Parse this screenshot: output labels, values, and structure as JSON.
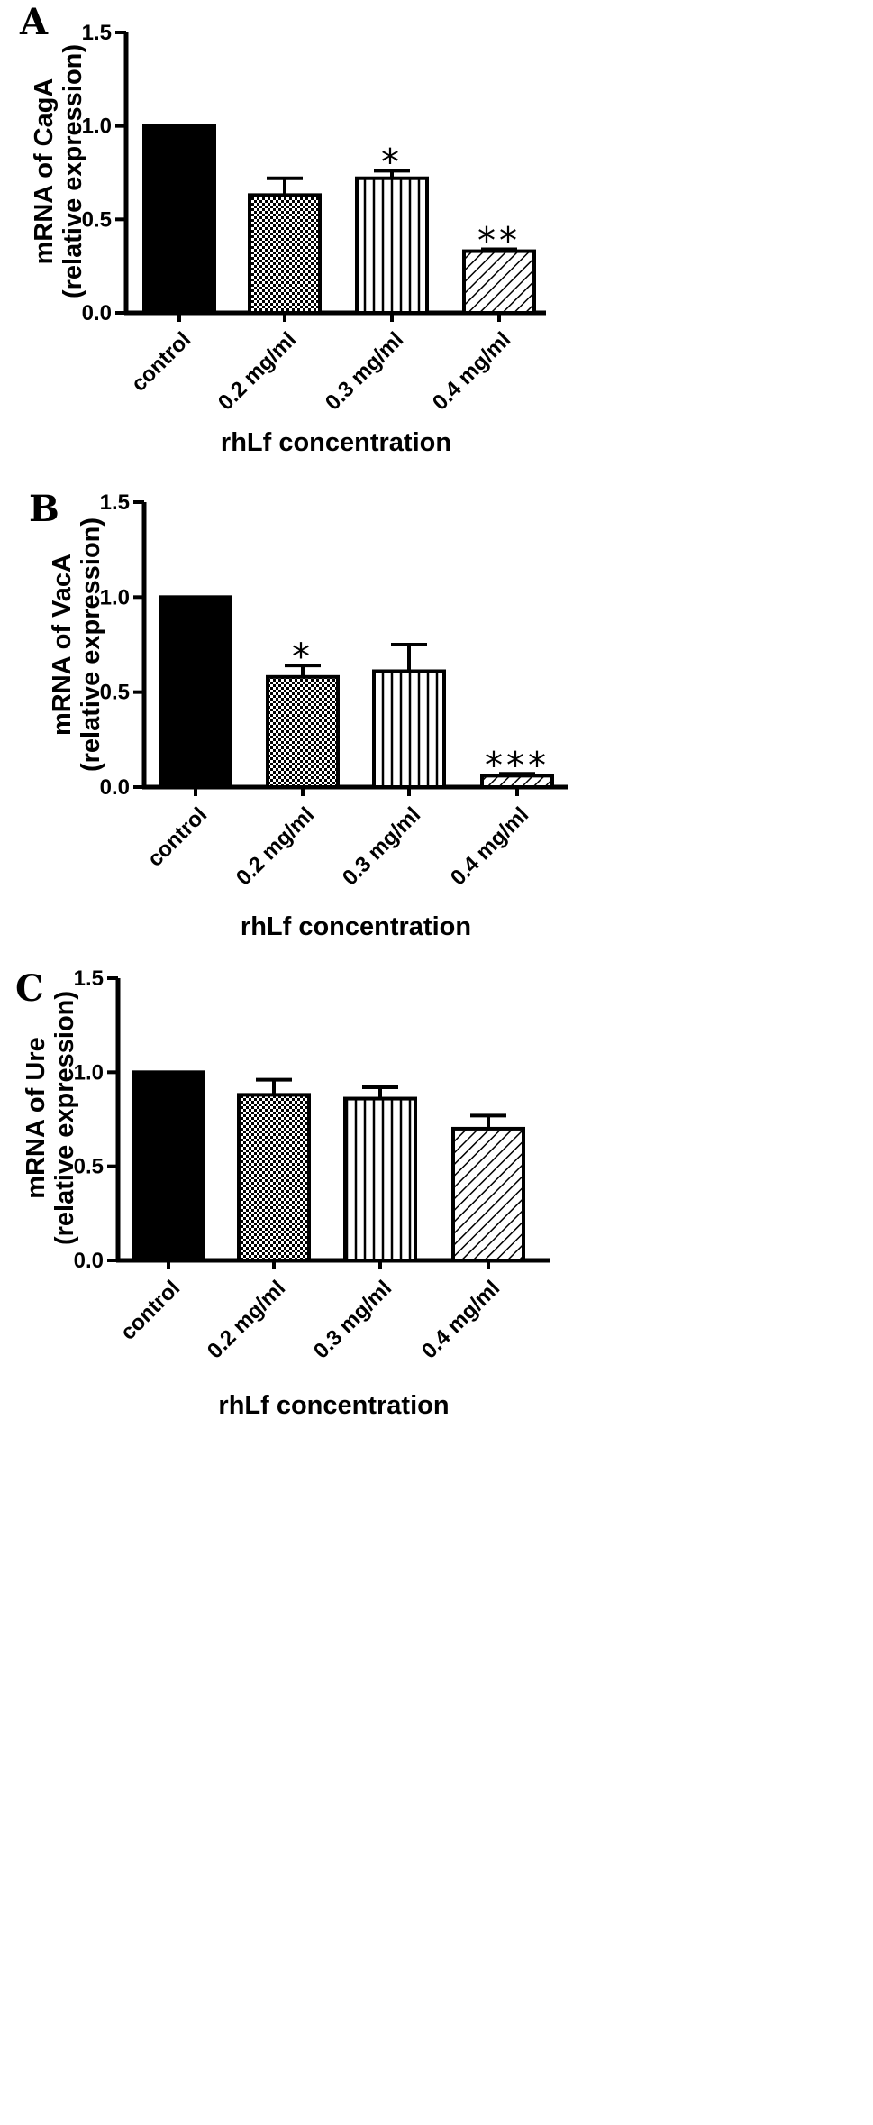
{
  "figure": {
    "colors": {
      "ink": "#000000",
      "background": "#ffffff"
    },
    "patterns": [
      "solid",
      "checker",
      "vertical-stripes",
      "diagonal-stripes"
    ]
  },
  "chart_data": [
    {
      "type": "bar",
      "panel_label": "A",
      "title": "",
      "categories": [
        "control",
        "0.2 mg/ml",
        "0.3 mg/ml",
        "0.4 mg/ml"
      ],
      "values": [
        1.0,
        0.63,
        0.72,
        0.33
      ],
      "error": [
        0,
        0.09,
        0.04,
        0.01
      ],
      "significance": [
        "",
        "",
        "*",
        "**"
      ],
      "xlabel": "rhLf concentration",
      "ylabel_line1": "mRNA of CagA",
      "ylabel_line2": "(relative expression)",
      "ylim": [
        0,
        1.5
      ],
      "yticks": [
        "0.0",
        "0.5",
        "1.0",
        "1.5"
      ],
      "grid": false,
      "legend": "none"
    },
    {
      "type": "bar",
      "panel_label": "B",
      "title": "",
      "categories": [
        "control",
        "0.2 mg/ml",
        "0.3 mg/ml",
        "0.4 mg/ml"
      ],
      "values": [
        1.0,
        0.58,
        0.61,
        0.06
      ],
      "error": [
        0,
        0.06,
        0.14,
        0.01
      ],
      "significance": [
        "",
        "*",
        "",
        "***"
      ],
      "xlabel": "rhLf concentration",
      "ylabel_line1": "mRNA of VacA",
      "ylabel_line2": "(relative expression)",
      "ylim": [
        0,
        1.5
      ],
      "yticks": [
        "0.0",
        "0.5",
        "1.0",
        "1.5"
      ],
      "grid": false,
      "legend": "none"
    },
    {
      "type": "bar",
      "panel_label": "C",
      "title": "",
      "categories": [
        "control",
        "0.2 mg/ml",
        "0.3 mg/ml",
        "0.4 mg/ml"
      ],
      "values": [
        1.0,
        0.88,
        0.86,
        0.7
      ],
      "error": [
        0,
        0.08,
        0.06,
        0.07
      ],
      "significance": [
        "",
        "",
        "",
        ""
      ],
      "xlabel": "rhLf concentration",
      "ylabel_line1": "mRNA of Ure",
      "ylabel_line2": "(relative expression)",
      "ylim": [
        0,
        1.5
      ],
      "yticks": [
        "0.0",
        "0.5",
        "1.0",
        "1.5"
      ],
      "grid": false,
      "legend": "none"
    }
  ]
}
